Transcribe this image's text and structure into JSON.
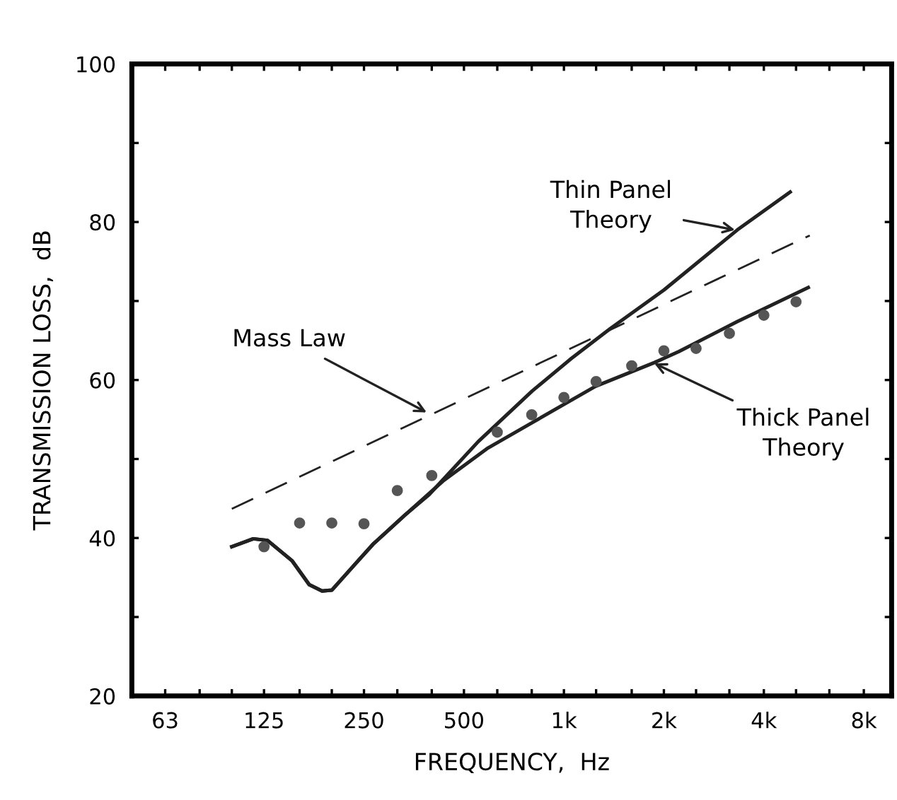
{
  "chart_data": {
    "type": "line",
    "xlabel": "FREQUENCY,  Hz",
    "ylabel": "TRANSMISSION LOSS,  dB",
    "log": "x",
    "grid": false,
    "xlim": [
      50,
      9700
    ],
    "ylim": [
      20,
      100
    ],
    "xticks": [
      63,
      {
        "value": 80,
        "label": null
      },
      {
        "value": 100,
        "label": null
      },
      125,
      {
        "value": 160,
        "label": null
      },
      {
        "value": 200,
        "label": null
      },
      250,
      {
        "value": 315,
        "label": null
      },
      {
        "value": 400,
        "label": null
      },
      500,
      {
        "value": 630,
        "label": null
      },
      {
        "value": 800,
        "label": null
      },
      {
        "value": 1000,
        "label": "1k"
      },
      {
        "value": 1250,
        "label": null
      },
      {
        "value": 1600,
        "label": null
      },
      {
        "value": 2000,
        "label": "2k"
      },
      {
        "value": 2500,
        "label": null
      },
      {
        "value": 3150,
        "label": null
      },
      {
        "value": 4000,
        "label": "4k"
      },
      {
        "value": 5000,
        "label": null
      },
      {
        "value": 6300,
        "label": null
      },
      {
        "value": 8000,
        "label": "8k"
      }
    ],
    "yticks": [
      20,
      {
        "value": 30,
        "label": null
      },
      40,
      {
        "value": 50,
        "label": null
      },
      60,
      {
        "value": 70,
        "label": null
      },
      80,
      {
        "value": 90,
        "label": null
      },
      100
    ],
    "series": [
      {
        "line_style": "dashed",
        "color": "#222222",
        "x": [
          100,
          5500
        ],
        "values": [
          43.7,
          78.3
        ]
      },
      {
        "line_style": "solid",
        "color": "#222222",
        "x": [
          100,
          116,
          128,
          152,
          171,
          187,
          200,
          266,
          332,
          393,
          552,
          802,
          1051,
          1379,
          2002,
          3328,
          4801
        ],
        "values": [
          38.9,
          39.9,
          39.7,
          37.1,
          34.1,
          33.3,
          33.4,
          39.2,
          42.9,
          45.5,
          52.2,
          58.6,
          62.7,
          66.5,
          71.4,
          79.0,
          83.8
        ]
      },
      {
        "line_style": "solid",
        "color": "#222222",
        "x": [
          100,
          116,
          128,
          152,
          171,
          187,
          200,
          266,
          332,
          435,
          591,
          802,
          1245,
          1871,
          2217,
          3328,
          5442
        ],
        "values": [
          38.9,
          39.9,
          39.7,
          37.1,
          34.1,
          33.3,
          33.4,
          39.2,
          42.9,
          47.3,
          51.4,
          54.6,
          59.2,
          62.2,
          63.6,
          67.4,
          71.7
        ]
      },
      {
        "type": "scatter",
        "marker": "circle",
        "color": "#555555",
        "x": [
          125,
          160,
          200,
          250,
          315,
          400,
          630,
          800,
          1000,
          1250,
          1600,
          2000,
          2500,
          3150,
          4000,
          5000
        ],
        "values": [
          38.9,
          41.9,
          41.9,
          41.8,
          46.0,
          47.9,
          53.4,
          55.6,
          57.8,
          59.8,
          61.8,
          63.7,
          64.0,
          65.9,
          68.2,
          69.9
        ]
      }
    ],
    "annotations": [
      {
        "text": "Thin Panel\nTheory",
        "x": 3274,
        "y": 79.0
      },
      {
        "text": "Mass Law",
        "x": 386,
        "y": 55.9
      },
      {
        "text": "Thick Panel\nTheory",
        "x": 1871,
        "y": 62.1
      }
    ]
  }
}
